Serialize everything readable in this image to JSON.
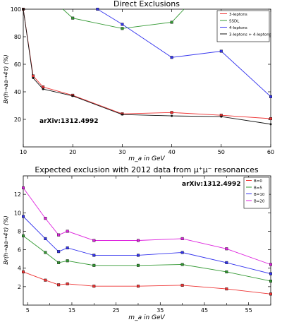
{
  "chart_data": [
    {
      "type": "line",
      "title": "Direct Exclusions",
      "xlabel": "m_a in GeV",
      "ylabel": "Br(h→aa→4τ) (%)",
      "annotation": "arXiv:1312.4992",
      "xlim": [
        10,
        60
      ],
      "ylim": [
        0,
        100
      ],
      "xticks": [
        10,
        20,
        30,
        40,
        50,
        60
      ],
      "yticks": [
        20,
        40,
        60,
        80,
        100
      ],
      "grid": false,
      "legend_position": "top-right",
      "series": [
        {
          "name": "3-leptons",
          "color": "#ee3333",
          "marker": "square",
          "x": [
            10,
            12,
            14,
            20,
            30,
            40,
            50,
            60
          ],
          "y": [
            100,
            51.5,
            43.5,
            37.5,
            24,
            25,
            23,
            20.5
          ]
        },
        {
          "name": "SSDL",
          "color": "#339933",
          "marker": "square",
          "x": [
            20,
            30,
            40
          ],
          "y": [
            93.5,
            86,
            90.5
          ],
          "x_ext": [
            18,
            20,
            30,
            40,
            42.5
          ],
          "y_ext": [
            100,
            93.5,
            86,
            90.5,
            100
          ]
        },
        {
          "name": "4-leptons",
          "color": "#3333ee",
          "marker": "square",
          "x": [
            25,
            30,
            40,
            50,
            60
          ],
          "y": [
            100,
            89,
            65,
            69.5,
            36.5
          ]
        },
        {
          "name": "3-leptons + 4-leptons",
          "color": "#111111",
          "marker": "dot",
          "x": [
            10,
            12,
            14,
            20,
            30,
            40,
            50,
            60
          ],
          "y": [
            100,
            50,
            42,
            37,
            23.5,
            22.5,
            22,
            16.5
          ]
        }
      ]
    },
    {
      "type": "line",
      "title": "Expected exclusion with 2012 data from μ⁺μ⁻ resonances",
      "xlabel": "m_a in GeV",
      "ylabel": "Br(h→aa→4τ) (%)",
      "annotation": "arXiv:1312.4992",
      "xlim": [
        4,
        60
      ],
      "ylim": [
        0,
        14
      ],
      "xticks": [
        5,
        15,
        25,
        35,
        45,
        55
      ],
      "xtick_labels": [
        "5",
        "15",
        "25",
        "35",
        "45",
        "55"
      ],
      "extra_xticks": [
        10,
        20,
        30,
        40,
        50,
        60
      ],
      "yticks": [
        2,
        4,
        6,
        8,
        10,
        12
      ],
      "grid": false,
      "legend_position": "top-right",
      "x": [
        4,
        9,
        12,
        14,
        20,
        30,
        40,
        50,
        60
      ],
      "series": [
        {
          "name": "B=0",
          "color": "#ee3333",
          "values": [
            3.6,
            2.7,
            2.2,
            2.3,
            2.05,
            2.05,
            2.15,
            1.75,
            1.2
          ]
        },
        {
          "name": "B=5",
          "color": "#339933",
          "values": [
            7.5,
            5.7,
            4.6,
            4.8,
            4.3,
            4.3,
            4.4,
            3.6,
            2.6
          ]
        },
        {
          "name": "B=10",
          "color": "#3333ee",
          "values": [
            9.6,
            7.2,
            5.8,
            6.2,
            5.4,
            5.4,
            5.7,
            4.6,
            3.4
          ]
        },
        {
          "name": "B=20",
          "color": "#dd22dd",
          "values": [
            12.7,
            9.4,
            7.6,
            8.0,
            7.0,
            7.0,
            7.2,
            6.1,
            4.4
          ]
        }
      ]
    }
  ]
}
